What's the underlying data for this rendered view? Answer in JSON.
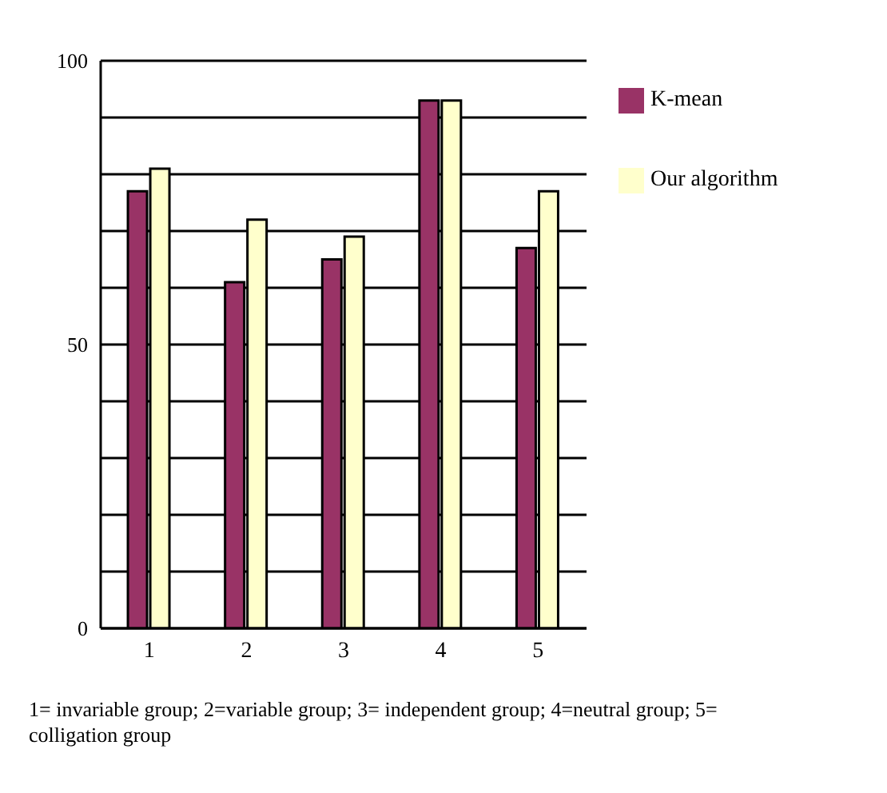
{
  "chart_data": {
    "type": "bar",
    "categories": [
      "1",
      "2",
      "3",
      "4",
      "5"
    ],
    "series": [
      {
        "name": "K-mean",
        "color": "#993366",
        "values": [
          77,
          61,
          65,
          93,
          67
        ]
      },
      {
        "name": "Our algorithm",
        "color": "#ffffcc",
        "values": [
          81,
          72,
          69,
          93,
          77
        ]
      }
    ],
    "ylim": [
      0,
      100
    ],
    "yticks": [
      0,
      {
        "value": 10,
        "label": null
      },
      {
        "value": 20,
        "label": null
      },
      {
        "value": 30,
        "label": null
      },
      {
        "value": 40,
        "label": null
      },
      50,
      {
        "value": 60,
        "label": null
      },
      {
        "value": 70,
        "label": null
      },
      {
        "value": 80,
        "label": null
      },
      {
        "value": 90,
        "label": null
      },
      100
    ],
    "grid": "y",
    "legend": "right",
    "annotations": [
      "1= invariable group; 2=variable group; 3= independent group; 4=neutral group; 5= colligation group"
    ]
  }
}
